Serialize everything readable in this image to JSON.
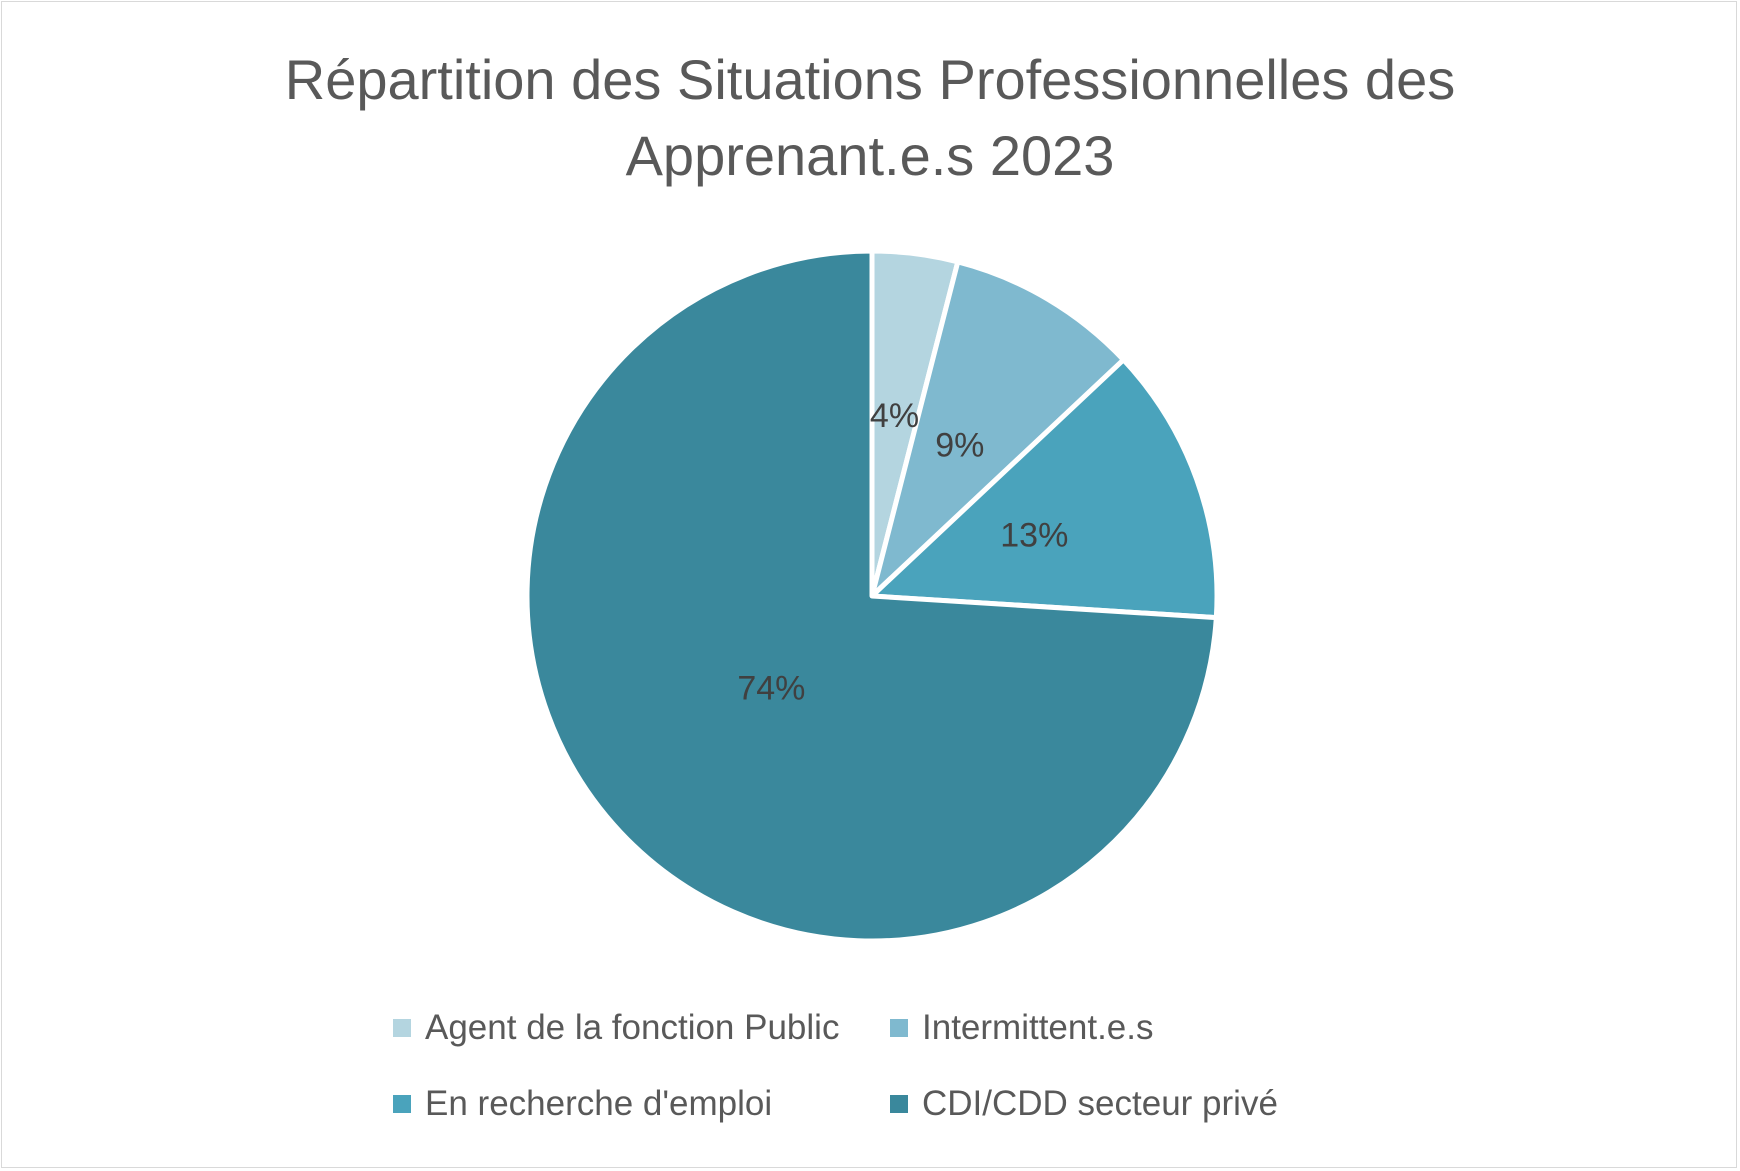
{
  "chart_data": {
    "type": "pie",
    "title_lines": [
      "Répartition des Situations Professionnelles des",
      "Apprenant.e.s 2023"
    ],
    "categories": [
      "Agent de la fonction Public",
      "Intermittent.e.s",
      "En recherche d'emploi",
      "CDI/CDD secteur privé"
    ],
    "values": [
      4,
      9,
      13,
      74
    ],
    "data_labels": [
      "4%",
      "9%",
      "13%",
      "74%"
    ],
    "unit": "%",
    "colors": [
      "#b4d5e0",
      "#7fb9cf",
      "#4aa3bc",
      "#3a889c"
    ],
    "legend_position": "bottom",
    "start_angle": "12 o'clock",
    "direction": "clockwise"
  }
}
